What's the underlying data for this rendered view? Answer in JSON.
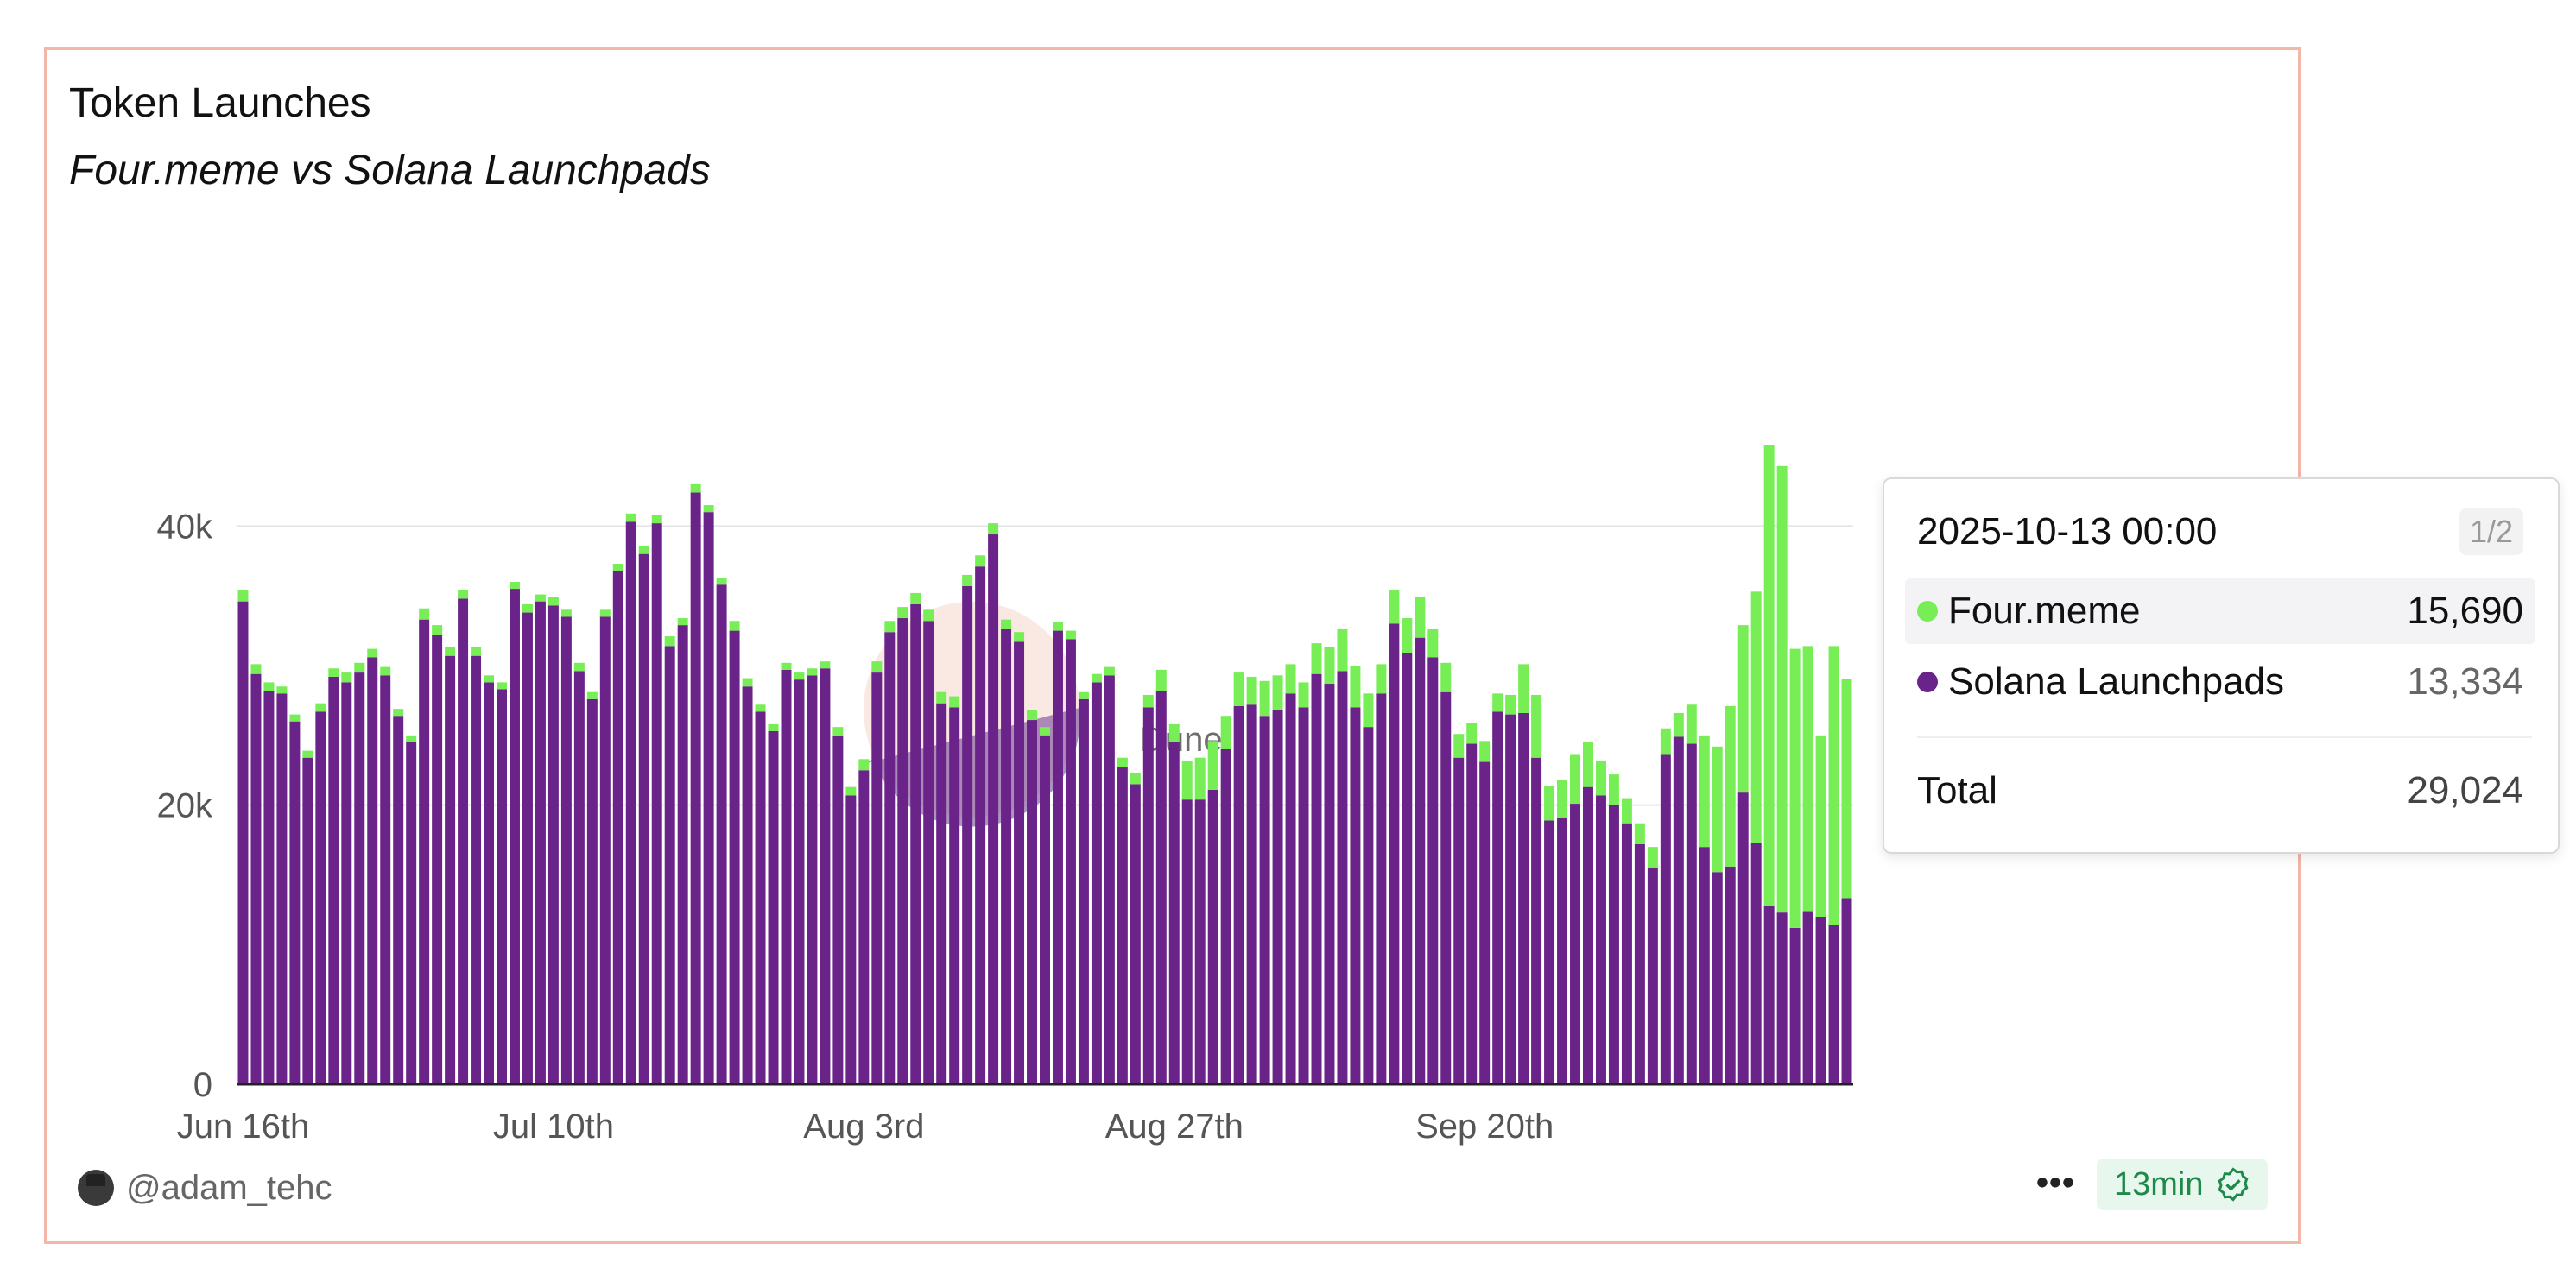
{
  "title": "Token Launches",
  "subtitle": "Four.meme vs Solana Launchpads",
  "watermark": "Dune",
  "author": "@adam_tehc",
  "menu_icon": "more-dots-icon",
  "refresh_badge": {
    "label": "13min",
    "icon": "verified-check-icon",
    "color": "#1e8a4a"
  },
  "colors": {
    "fourmeme": "#77ee55",
    "solana": "#6a2389"
  },
  "tooltip": {
    "date": "2025-10-13 00:00",
    "page": "1/2",
    "rows": [
      {
        "label": "Four.meme",
        "value": "15,690",
        "color": "#77ee55"
      },
      {
        "label": "Solana Launchpads",
        "value": "13,334",
        "color": "#6a2389"
      }
    ],
    "total_label": "Total",
    "total_value": "29,024"
  },
  "chart_data": {
    "type": "bar",
    "stacked": true,
    "title": "Token Launches",
    "subtitle": "Four.meme vs Solana Launchpads",
    "xlabel": "",
    "ylabel": "",
    "ylim": [
      0,
      60000
    ],
    "yticks": [
      0,
      20000,
      40000
    ],
    "ytick_labels": [
      "0",
      "20k",
      "40k"
    ],
    "xtick_labels": [
      "Jun 16th",
      "Jul 10th",
      "Aug 3rd",
      "Aug 27th",
      "Sep 20th"
    ],
    "xtick_indices": [
      0,
      24,
      48,
      72,
      96
    ],
    "start_date": "2025-06-16",
    "end_date": "2025-10-13",
    "legend": "none",
    "series": [
      {
        "name": "Four.meme",
        "values": [
          800,
          700,
          600,
          500,
          500,
          500,
          600,
          600,
          700,
          700,
          600,
          600,
          500,
          500,
          800,
          700,
          600,
          600,
          600,
          500,
          500,
          500,
          600,
          500,
          600,
          500,
          600,
          500,
          500,
          500,
          600,
          600,
          600,
          700,
          500,
          600,
          500,
          500,
          700,
          600,
          500,
          500,
          500,
          500,
          500,
          500,
          600,
          600,
          800,
          800,
          800,
          800,
          800,
          800,
          800,
          800,
          800,
          800,
          800,
          700,
          700,
          700,
          600,
          600,
          600,
          500,
          600,
          600,
          700,
          800,
          900,
          1500,
          1300,
          2800,
          3000,
          3500,
          2400,
          2400,
          2000,
          2500,
          2500,
          2100,
          1800,
          2200,
          2600,
          3000,
          3000,
          2400,
          2100,
          2400,
          2500,
          2900,
          2000,
          2100,
          1700,
          1500,
          1500,
          1300,
          1400,
          3500,
          4500,
          2500,
          2700,
          3500,
          3200,
          2500,
          2200,
          1800,
          1500,
          1500,
          1900,
          1700,
          2800,
          8000,
          9000,
          11500,
          12000,
          18000,
          33000,
          32000,
          20000,
          19000,
          13000,
          20000,
          15690
        ]
      },
      {
        "name": "Solana Launchpads",
        "values": [
          34600,
          29400,
          28200,
          28000,
          26000,
          23400,
          26700,
          29200,
          28800,
          29500,
          30600,
          29300,
          26400,
          24500,
          33300,
          32200,
          30700,
          34800,
          30700,
          28800,
          28300,
          35500,
          33800,
          34600,
          34300,
          33500,
          29600,
          27600,
          33500,
          36800,
          40300,
          38000,
          40200,
          31400,
          32900,
          42400,
          41000,
          35800,
          32500,
          28500,
          26700,
          25300,
          29700,
          29000,
          29300,
          29800,
          25000,
          20700,
          22500,
          29500,
          32400,
          33400,
          34400,
          33200,
          27300,
          27000,
          35700,
          37100,
          39400,
          32600,
          31700,
          26100,
          25000,
          32500,
          31900,
          27600,
          28800,
          29300,
          22700,
          21500,
          27000,
          28200,
          24500,
          20400,
          20400,
          21100,
          24000,
          27100,
          27200,
          26400,
          26800,
          28000,
          27000,
          29400,
          28700,
          29600,
          27000,
          25600,
          28000,
          33000,
          30900,
          32000,
          30600,
          28100,
          23400,
          24400,
          23100,
          26700,
          26500,
          26600,
          23400,
          18900,
          19100,
          20100,
          21300,
          20700,
          20000,
          18700,
          17200,
          15500,
          23600,
          24900,
          24400,
          17000,
          15200,
          15600,
          20900,
          17300,
          12800,
          12300,
          11200,
          12400,
          12000,
          11400,
          13334
        ]
      }
    ]
  }
}
